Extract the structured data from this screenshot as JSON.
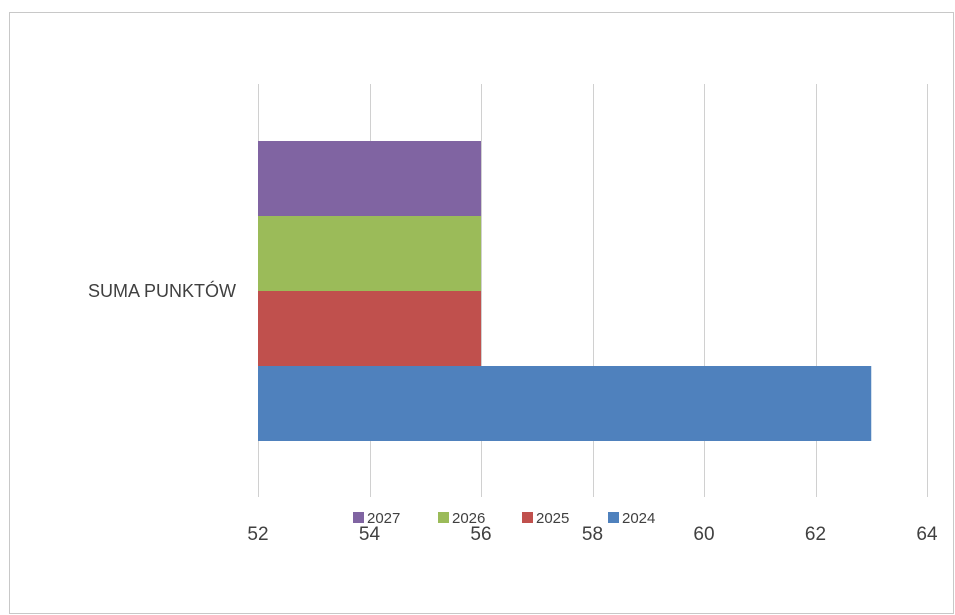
{
  "chart_data": {
    "type": "bar",
    "orientation": "horizontal",
    "categories": [
      "SUMA PUNKTÓW"
    ],
    "series": [
      {
        "name": "2024",
        "values": [
          63
        ],
        "color": "#4F81BD"
      },
      {
        "name": "2025",
        "values": [
          56
        ],
        "color": "#C0504D"
      },
      {
        "name": "2026",
        "values": [
          56
        ],
        "color": "#9BBB59"
      },
      {
        "name": "2027",
        "values": [
          56
        ],
        "color": "#8064A2"
      }
    ],
    "xlim": [
      52,
      64
    ],
    "xticks": [
      52,
      54,
      56,
      58,
      60,
      62,
      64
    ],
    "grid": true,
    "legend_position": "bottom",
    "title": "",
    "xlabel": "",
    "ylabel": ""
  }
}
